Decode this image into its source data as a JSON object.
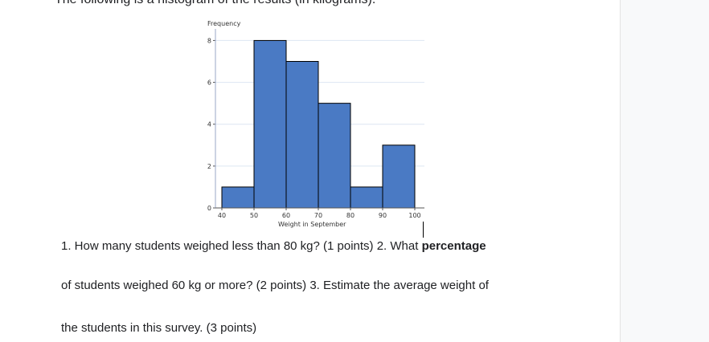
{
  "intro_text": "The following is a histogram of the results (in kilograms).",
  "chart_data": {
    "type": "bar",
    "title": "",
    "xlabel": "Weight in September",
    "ylabel": "Frequency",
    "bins": [
      [
        40,
        50
      ],
      [
        50,
        60
      ],
      [
        60,
        70
      ],
      [
        70,
        80
      ],
      [
        80,
        90
      ],
      [
        90,
        100
      ]
    ],
    "categories": [
      "40-50",
      "50-60",
      "60-70",
      "70-80",
      "80-90",
      "90-100"
    ],
    "values": [
      1,
      8,
      7,
      5,
      1,
      3
    ],
    "xlim": [
      38,
      103
    ],
    "ylim": [
      0,
      8.4
    ],
    "x_ticks": [
      40,
      50,
      60,
      70,
      80,
      90,
      100
    ],
    "y_ticks": [
      0,
      2,
      4,
      6,
      8
    ],
    "bar_color": "#4a7ac4",
    "bar_edge_color": "#000000",
    "grid": true
  },
  "questions": {
    "line1_prefix": "1. How many students weighed less than 80 kg? (1 points)  2. What ",
    "line1_bold": "percentage",
    "line2": "of students weighed 60 kg or more? (2 points)  3. Estimate the average weight of",
    "line3": "the students in this survey. (3 points)"
  }
}
